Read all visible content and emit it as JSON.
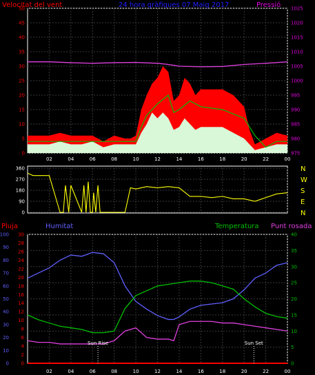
{
  "chart_data": [
    {
      "type": "area",
      "title": "24 hora gràfiques  07 Maig 2017",
      "left_label": "Velocitat del vent",
      "right_label": "Pressió",
      "x_ticks": [
        "02",
        "04",
        "06",
        "08",
        "10",
        "12",
        "14",
        "16",
        "18",
        "20",
        "22",
        "00"
      ],
      "left_axis": {
        "ticks": [
          0,
          5,
          10,
          15,
          20,
          25,
          30,
          35,
          40,
          45,
          50
        ],
        "ylim": [
          0,
          50
        ]
      },
      "right_axis": {
        "ticks": [
          975,
          980,
          985,
          990,
          995,
          1000,
          1005,
          1010,
          1015,
          1020,
          1025
        ],
        "ylim": [
          975,
          1025
        ]
      },
      "colors": {
        "gust": "#ff0000",
        "wind": "#d8f8d8",
        "avg": "#00c000",
        "pressure": "#e040e0",
        "title": "#2020ff",
        "axis_left": "#ff0000",
        "axis_right": "#e000e0"
      },
      "series": [
        {
          "key": "gust",
          "x": [
            0,
            2,
            3,
            4,
            5,
            6,
            7,
            8,
            9,
            9.5,
            10,
            10.5,
            11,
            11.5,
            12,
            12.5,
            13,
            13.5,
            14,
            14.5,
            15,
            15.5,
            16,
            17,
            18,
            19,
            20,
            20.5,
            21,
            22,
            23,
            24
          ],
          "values": [
            6,
            6,
            7,
            6,
            6,
            6,
            4,
            6,
            5,
            5,
            6,
            15,
            20,
            24,
            26,
            30,
            28,
            18,
            20,
            26,
            24,
            20,
            22,
            22,
            22,
            20,
            16,
            8,
            3,
            5,
            7,
            6
          ]
        },
        {
          "key": "wind",
          "x": [
            0,
            2,
            3,
            4,
            5,
            6,
            7,
            8,
            9,
            9.5,
            10,
            10.5,
            11,
            11.5,
            12,
            12.5,
            13,
            13.5,
            14,
            14.5,
            15,
            15.5,
            16,
            17,
            18,
            19,
            20,
            20.5,
            21,
            22,
            23,
            24
          ],
          "values": [
            3,
            3,
            4,
            3,
            3,
            4,
            2,
            3,
            3,
            3,
            3,
            7,
            10,
            14,
            12,
            14,
            12,
            8,
            9,
            12,
            10,
            8,
            9,
            9,
            9,
            7,
            5,
            3,
            1,
            2,
            3,
            3
          ]
        },
        {
          "key": "avg",
          "x": [
            0,
            2,
            4,
            6,
            8,
            9,
            10,
            10.5,
            11,
            12,
            13,
            13.5,
            14,
            15,
            16,
            18,
            20,
            21,
            22,
            23,
            24
          ],
          "values": [
            4,
            4,
            4,
            4,
            4,
            4,
            4,
            9,
            13,
            17,
            20,
            14,
            15,
            18,
            16,
            15,
            12,
            6,
            2,
            4,
            4
          ]
        },
        {
          "key": "pressure",
          "x": [
            0,
            2,
            4,
            6,
            8,
            10,
            12,
            13,
            14,
            16,
            18,
            20,
            22,
            24
          ],
          "values": [
            1006.5,
            1006.5,
            1006.2,
            1006,
            1006.2,
            1006.3,
            1006,
            1005.6,
            1005,
            1004.8,
            1004.9,
            1005.6,
            1006,
            1006.5
          ]
        }
      ]
    },
    {
      "type": "line",
      "x_ticks": [
        "02",
        "04",
        "06",
        "08",
        "10",
        "12",
        "14",
        "16",
        "18",
        "20",
        "22",
        "00"
      ],
      "left_axis": {
        "ticks": [
          0,
          90,
          180,
          270,
          360
        ],
        "ylim": [
          0,
          360
        ]
      },
      "right_labels": [
        "N",
        "W",
        "S",
        "E",
        "N"
      ],
      "colors": {
        "line": "#ffff00"
      },
      "series": [
        {
          "key": "direction",
          "x": [
            0,
            0.5,
            1,
            1.5,
            2,
            3,
            3.3,
            3.5,
            3.8,
            4,
            5,
            5.2,
            5.4,
            5.6,
            5.8,
            6,
            6.1,
            6.3,
            6.5,
            6.7,
            7,
            8,
            9,
            9.5,
            10,
            11,
            12,
            13,
            14,
            15,
            16,
            17,
            18,
            19,
            20,
            21,
            22,
            23,
            24
          ],
          "values": [
            320,
            300,
            300,
            300,
            300,
            0,
            0,
            220,
            0,
            220,
            0,
            220,
            0,
            250,
            0,
            0,
            160,
            0,
            220,
            0,
            0,
            0,
            0,
            200,
            190,
            210,
            200,
            210,
            200,
            130,
            130,
            120,
            130,
            110,
            110,
            90,
            120,
            150,
            160
          ]
        }
      ]
    },
    {
      "type": "line",
      "labels": {
        "rain": "Pluja",
        "humidity": "Humitat",
        "temp": "Temperatura",
        "dew": "Punt rosada"
      },
      "x_ticks": [
        "02",
        "04",
        "06",
        "08",
        "10",
        "12",
        "14",
        "16",
        "18",
        "20",
        "22",
        "00"
      ],
      "axes": {
        "rain": {
          "ticks": [
            0,
            10,
            20,
            30,
            40,
            50,
            60,
            70,
            80,
            90,
            100
          ],
          "ylim": [
            0,
            100
          ]
        },
        "humidity": {
          "ticks": [
            0,
            2,
            4,
            6,
            8,
            10,
            12,
            14,
            16,
            18,
            20,
            22,
            24,
            26,
            28,
            30
          ],
          "ylim": [
            0,
            30
          ]
        },
        "temp": {
          "ticks": [
            0,
            5,
            10,
            15,
            20,
            25,
            30,
            35,
            40
          ],
          "ylim": [
            0,
            40
          ]
        }
      },
      "annotations": [
        {
          "text": "Sun Rise",
          "x": 6.5
        },
        {
          "text": "Sun Set",
          "x": 20.9
        }
      ],
      "colors": {
        "rain": "#ff0000",
        "humidity": "#6060ff",
        "temp": "#00c000",
        "dew": "#e040e0"
      },
      "series": [
        {
          "key": "humidity",
          "axis": "rain",
          "x": [
            0,
            1,
            2,
            3,
            4,
            5,
            6,
            7,
            8,
            9,
            10,
            11,
            12,
            13,
            13.5,
            14,
            15,
            16,
            17,
            18,
            19,
            20,
            21,
            22,
            23,
            24
          ],
          "values": [
            66,
            70,
            74,
            80,
            84,
            83,
            86,
            85,
            78,
            60,
            48,
            42,
            37,
            34,
            34,
            36,
            42,
            45,
            46,
            47,
            50,
            57,
            66,
            70,
            76,
            78
          ]
        },
        {
          "key": "temp",
          "axis": "temp",
          "x": [
            0,
            1,
            2,
            3,
            4,
            5,
            6,
            7,
            8,
            9,
            10,
            11,
            12,
            13,
            14,
            15,
            16,
            17,
            18,
            19,
            20,
            21,
            22,
            23,
            24
          ],
          "values": [
            15,
            13.5,
            12.5,
            11.5,
            11,
            10.5,
            9.5,
            9.5,
            10,
            17,
            21,
            22.5,
            24,
            24.5,
            25,
            25.5,
            25.5,
            25,
            24,
            23,
            20,
            17.5,
            15.5,
            14.5,
            14
          ]
        },
        {
          "key": "dew",
          "axis": "temp",
          "x": [
            0,
            1,
            2,
            3,
            4,
            5,
            6,
            7,
            8,
            9,
            10,
            11,
            12,
            13,
            13.5,
            14,
            15,
            16,
            17,
            18,
            19,
            20,
            21,
            22,
            23,
            24
          ],
          "values": [
            7,
            6.5,
            6.5,
            6,
            6,
            6,
            6,
            6,
            7,
            10,
            11,
            8,
            7.5,
            7.5,
            7,
            12,
            13,
            13,
            13,
            12.5,
            12.5,
            12,
            11.5,
            11,
            10.5,
            10
          ]
        },
        {
          "key": "rain",
          "axis": "rain",
          "x": [
            0,
            24
          ],
          "values": [
            0,
            0
          ]
        }
      ]
    }
  ]
}
